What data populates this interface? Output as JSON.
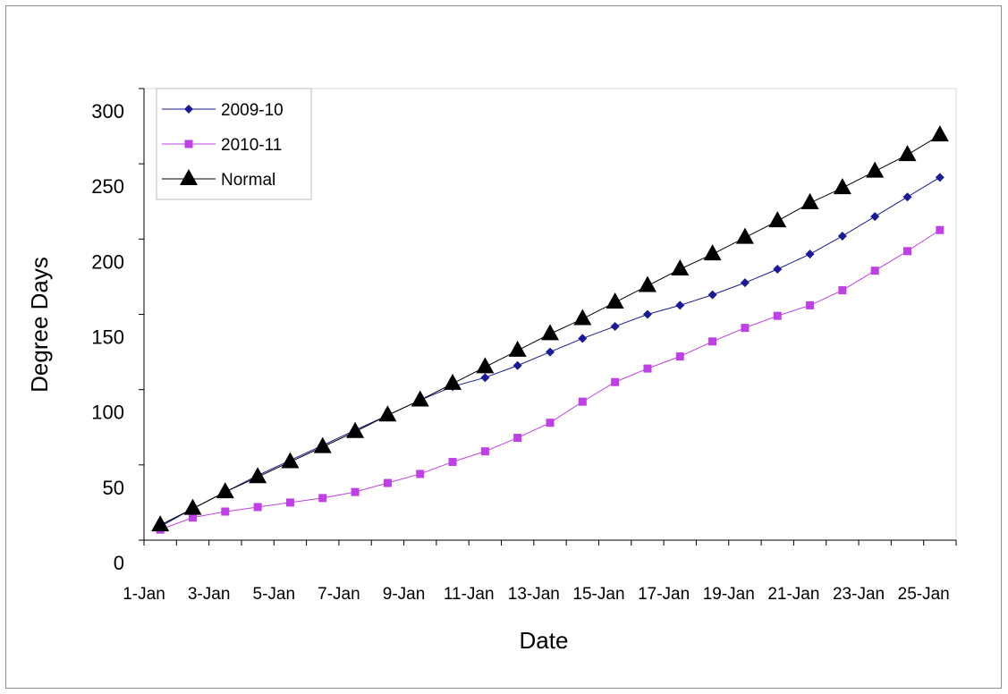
{
  "colors": {
    "series_2009_10": "#1a1a99",
    "series_2010_11": "#bf40e6",
    "series_normal": "#000000",
    "axis": "#000000",
    "frame": "#8c8c8c"
  },
  "chart_data": {
    "type": "line",
    "title": "",
    "xlabel": "Date",
    "ylabel": "Degree Days",
    "ylim": [
      0,
      300
    ],
    "y_ticks": [
      "0",
      "50",
      "100",
      "150",
      "200",
      "250",
      "300"
    ],
    "y_tick_values": [
      0,
      50,
      100,
      150,
      200,
      250,
      300
    ],
    "x_tick_labels": [
      "1-Jan",
      "3-Jan",
      "5-Jan",
      "7-Jan",
      "9-Jan",
      "11-Jan",
      "13-Jan",
      "15-Jan",
      "17-Jan",
      "19-Jan",
      "21-Jan",
      "23-Jan",
      "25-Jan"
    ],
    "grid": false,
    "legend": {
      "position": "top-left"
    },
    "x": [
      "1-Jan",
      "2-Jan",
      "3-Jan",
      "4-Jan",
      "5-Jan",
      "6-Jan",
      "7-Jan",
      "8-Jan",
      "9-Jan",
      "10-Jan",
      "11-Jan",
      "12-Jan",
      "13-Jan",
      "14-Jan",
      "15-Jan",
      "16-Jan",
      "17-Jan",
      "18-Jan",
      "19-Jan",
      "20-Jan",
      "21-Jan",
      "22-Jan",
      "23-Jan",
      "24-Jan",
      "25-Jan"
    ],
    "series": [
      {
        "name": "2009-10",
        "marker": "diamond",
        "values": [
          9,
          21,
          32,
          43,
          53,
          63,
          73,
          83,
          93,
          102,
          108,
          116,
          125,
          134,
          142,
          150,
          156,
          163,
          171,
          180,
          190,
          202,
          215,
          228,
          241
        ]
      },
      {
        "name": "2010-11",
        "marker": "square",
        "values": [
          7,
          15,
          19,
          22,
          25,
          28,
          32,
          38,
          44,
          52,
          59,
          68,
          78,
          92,
          105,
          114,
          122,
          132,
          141,
          149,
          156,
          166,
          179,
          192,
          206
        ]
      },
      {
        "name": "Normal",
        "marker": "triangle",
        "values": [
          10,
          21,
          32,
          42,
          52,
          62,
          72,
          83,
          93,
          104,
          115,
          126,
          137,
          147,
          158,
          169,
          180,
          190,
          201,
          212,
          224,
          234,
          245,
          256,
          269
        ]
      }
    ]
  }
}
